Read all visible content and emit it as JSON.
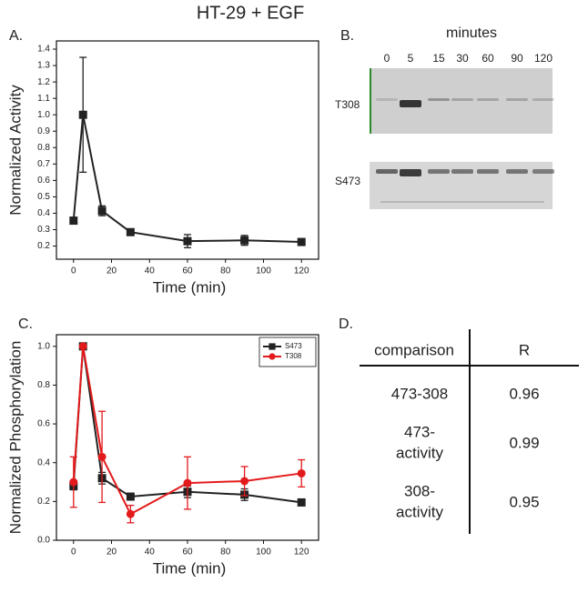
{
  "title": "HT-29 + EGF",
  "chart_data": [
    {
      "type": "line",
      "label": "A.",
      "xlabel": "Time (min)",
      "ylabel": "Normalized Activity",
      "x": [
        0,
        5,
        15,
        30,
        60,
        90,
        120
      ],
      "values": [
        0.355,
        1.0,
        0.415,
        0.285,
        0.23,
        0.235,
        0.225
      ],
      "errors": [
        0.01,
        0.35,
        0.03,
        0.01,
        0.04,
        0.03,
        0.01
      ],
      "color": "#222222",
      "marker": "square",
      "xlim": [
        -9,
        129
      ],
      "xticks": [
        0,
        20,
        40,
        60,
        80,
        100,
        120
      ],
      "ylim": [
        0.12,
        1.45
      ],
      "yticks": [
        0.2,
        0.3,
        0.4,
        0.5,
        0.6,
        0.7,
        0.8,
        0.9,
        {
          "value": 1,
          "label": "1.0"
        },
        1.1,
        1.2,
        1.3,
        1.4
      ]
    },
    {
      "type": "line",
      "label": "C.",
      "xlabel": "Time (min)",
      "ylabel": "Normalized Phosphorylation",
      "x": [
        0,
        5,
        15,
        30,
        60,
        90,
        120
      ],
      "series": [
        {
          "name": "S473",
          "color": "#222222",
          "marker": "square",
          "values": [
            0.28,
            1.0,
            0.32,
            0.225,
            0.25,
            0.235,
            0.195
          ],
          "errors": [
            0.02,
            0.0,
            0.03,
            0.01,
            0.03,
            0.03,
            0.01
          ]
        },
        {
          "name": "T308",
          "color": "#e31a1c",
          "marker": "circle",
          "values": [
            0.3,
            1.0,
            0.43,
            0.135,
            0.295,
            0.305,
            0.345
          ],
          "errors": [
            0.13,
            0.0,
            0.235,
            0.045,
            0.135,
            0.075,
            0.07
          ]
        }
      ],
      "legend": "upper right",
      "xlim": [
        -9,
        129
      ],
      "xticks": [
        0,
        20,
        40,
        60,
        80,
        100,
        120
      ],
      "ylim": [
        0,
        1.06
      ],
      "yticks": [
        {
          "value": 0,
          "label": "0.0"
        },
        0.2,
        0.4,
        0.6,
        0.8,
        {
          "value": 1,
          "label": "1.0"
        }
      ]
    }
  ],
  "blot": {
    "label": "B.",
    "header": "minutes",
    "lanes": [
      "0",
      "5",
      "15",
      "30",
      "60",
      "90",
      "120"
    ],
    "rows": [
      "T308",
      "S473"
    ]
  },
  "table": {
    "label": "D.",
    "columns": [
      "comparison",
      "R"
    ],
    "rows": [
      [
        "473-308",
        "0.96"
      ],
      [
        "473-\nactivity",
        "0.99"
      ],
      [
        "308-\nactivity",
        "0.95"
      ]
    ]
  }
}
